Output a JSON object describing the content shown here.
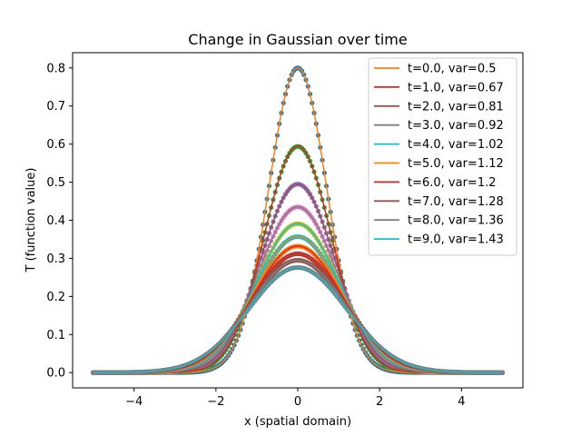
{
  "chart_data": {
    "type": "line",
    "title": "Change in Gaussian over time",
    "xlabel": "x (spatial domain)",
    "ylabel": "T (function value)",
    "xlim": [
      -5.5,
      5.5
    ],
    "ylim": [
      -0.04,
      0.84
    ],
    "xticks": [
      -4,
      -2,
      0,
      2,
      4
    ],
    "yticks": [
      0.0,
      0.1,
      0.2,
      0.3,
      0.4,
      0.5,
      0.6,
      0.7,
      0.8
    ],
    "x_domain": [
      -5,
      5
    ],
    "grid": false,
    "legend_position": "top-right",
    "point_colors": [
      "#1f77b4",
      "#2ca02c",
      "#9467bd",
      "#e377c2",
      "#bcbd22",
      "#17becf",
      "#ff7f0e",
      "#d62728",
      "#8c564b",
      "#7f7f7f"
    ],
    "series": [
      {
        "name": "t=0.0, var=0.5",
        "variance": 0.5,
        "color": "#ff7f0e",
        "peak": 0.8
      },
      {
        "name": "t=1.0, var=0.67",
        "variance": 0.67,
        "color": "#d62728",
        "peak": 0.594
      },
      {
        "name": "t=2.0, var=0.81",
        "variance": 0.81,
        "color": "#8c564b",
        "peak": 0.495
      },
      {
        "name": "t=3.0, var=0.92",
        "variance": 0.92,
        "color": "#7f7f7f",
        "peak": 0.435
      },
      {
        "name": "t=4.0, var=1.02",
        "variance": 1.02,
        "color": "#17becf",
        "peak": 0.391
      },
      {
        "name": "t=5.0, var=1.12",
        "variance": 1.12,
        "color": "#ff7f0e",
        "peak": 0.357
      },
      {
        "name": "t=6.0, var=1.2",
        "variance": 1.2,
        "color": "#d62728",
        "peak": 0.332
      },
      {
        "name": "t=7.0, var=1.28",
        "variance": 1.28,
        "color": "#8c564b",
        "peak": 0.312
      },
      {
        "name": "t=8.0, var=1.36",
        "variance": 1.36,
        "color": "#7f7f7f",
        "peak": 0.295
      },
      {
        "name": "t=9.0, var=1.43",
        "variance": 1.43,
        "color": "#17becf",
        "peak": 0.276
      }
    ]
  }
}
